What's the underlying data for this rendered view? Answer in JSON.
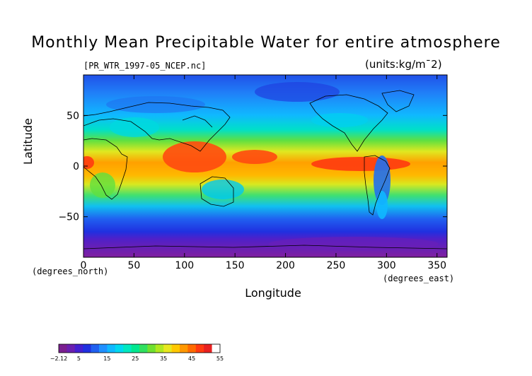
{
  "chart_data": {
    "type": "heatmap",
    "title": "Monthly Mean Precipitable Water for entire atmosphere",
    "source_label": "[PR_WTR_1997-05_NCEP.nc]",
    "units_label": "(units:kg/m¯2)",
    "xlabel": "Longitude",
    "ylabel": "Latitude",
    "x_unit_label": "(degrees_east)",
    "y_unit_label": "(degrees_north)",
    "xlim": [
      0,
      360
    ],
    "ylim": [
      -90,
      90
    ],
    "x_ticks": [
      0,
      50,
      100,
      150,
      200,
      250,
      300,
      350
    ],
    "y_ticks": [
      50,
      0,
      -50
    ],
    "y_tick_labels": [
      "50",
      "0",
      "−50"
    ],
    "colorbar": {
      "tick_values": [
        -2.12,
        5,
        15,
        25,
        35,
        45,
        55
      ],
      "tick_labels": [
        "−2.12",
        "5",
        "15",
        "25",
        "35",
        "45",
        "55"
      ],
      "colors": [
        "#7a1f8f",
        "#6a1fb0",
        "#4420d0",
        "#2030e0",
        "#2060f0",
        "#2090ff",
        "#10b8ff",
        "#00d8f0",
        "#00e8c0",
        "#00e890",
        "#30e060",
        "#70e030",
        "#b0e820",
        "#e8e820",
        "#ffc800",
        "#ff9800",
        "#ff6a00",
        "#ff3a10",
        "#e82020",
        "#ffffff"
      ]
    },
    "lat_band_means": [
      {
        "lat": 85,
        "value": 3
      },
      {
        "lat": 65,
        "value": 8
      },
      {
        "lat": 45,
        "value": 14
      },
      {
        "lat": 25,
        "value": 25
      },
      {
        "lat": 5,
        "value": 44
      },
      {
        "lat": -15,
        "value": 35
      },
      {
        "lat": -35,
        "value": 18
      },
      {
        "lat": -55,
        "value": 9
      },
      {
        "lat": -75,
        "value": 2
      }
    ]
  }
}
